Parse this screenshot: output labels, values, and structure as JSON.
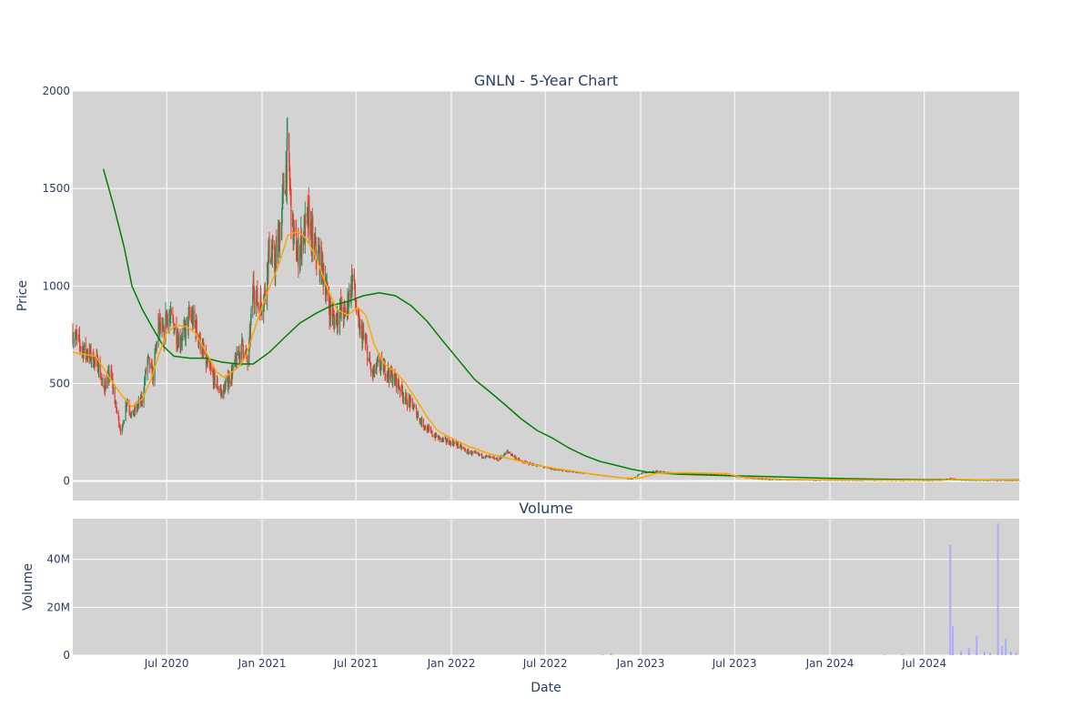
{
  "chart_data": [
    {
      "type": "candlestick",
      "title": "GNLN - 5-Year Chart",
      "ylabel": "Price",
      "ylim": [
        -100,
        2000
      ],
      "yticks": [
        0,
        500,
        1000,
        1500,
        2000
      ],
      "xlim": [
        "2020-01-02",
        "2024-12-31"
      ],
      "grid": true,
      "legend": "none",
      "colors": {
        "up": "#2e8b57",
        "down": "#ef3b2c",
        "short_ma": "#ffa500",
        "long_ma": "#008000",
        "background": "#d3d3d3"
      },
      "price_path": [
        [
          "2020-01-02",
          760
        ],
        [
          "2020-01-20",
          680
        ],
        [
          "2020-02-05",
          640
        ],
        [
          "2020-02-20",
          600
        ],
        [
          "2020-03-01",
          470
        ],
        [
          "2020-03-15",
          560
        ],
        [
          "2020-03-25",
          380
        ],
        [
          "2020-04-05",
          240
        ],
        [
          "2020-04-15",
          420
        ],
        [
          "2020-04-25",
          330
        ],
        [
          "2020-05-05",
          380
        ],
        [
          "2020-05-15",
          420
        ],
        [
          "2020-05-25",
          620
        ],
        [
          "2020-06-05",
          540
        ],
        [
          "2020-06-15",
          800
        ],
        [
          "2020-06-25",
          740
        ],
        [
          "2020-07-01",
          860
        ],
        [
          "2020-07-15",
          800
        ],
        [
          "2020-07-25",
          720
        ],
        [
          "2020-08-05",
          760
        ],
        [
          "2020-08-15",
          850
        ],
        [
          "2020-08-25",
          800
        ],
        [
          "2020-09-05",
          700
        ],
        [
          "2020-09-15",
          610
        ],
        [
          "2020-10-01",
          520
        ],
        [
          "2020-10-15",
          450
        ],
        [
          "2020-10-25",
          500
        ],
        [
          "2020-11-05",
          560
        ],
        [
          "2020-11-15",
          640
        ],
        [
          "2020-11-25",
          700
        ],
        [
          "2020-12-05",
          600
        ],
        [
          "2020-12-15",
          1000
        ],
        [
          "2020-12-25",
          900
        ],
        [
          "2021-01-05",
          940
        ],
        [
          "2021-01-15",
          1200
        ],
        [
          "2021-01-25",
          1100
        ],
        [
          "2021-02-05",
          1300
        ],
        [
          "2021-02-12",
          1500
        ],
        [
          "2021-02-20",
          1700
        ],
        [
          "2021-02-28",
          1300
        ],
        [
          "2021-03-10",
          1150
        ],
        [
          "2021-03-20",
          1250
        ],
        [
          "2021-04-01",
          1350
        ],
        [
          "2021-04-10",
          1200
        ],
        [
          "2021-04-20",
          1150
        ],
        [
          "2021-05-01",
          1050
        ],
        [
          "2021-05-10",
          900
        ],
        [
          "2021-05-20",
          820
        ],
        [
          "2021-06-01",
          880
        ],
        [
          "2021-06-10",
          850
        ],
        [
          "2021-06-25",
          1050
        ],
        [
          "2021-07-05",
          800
        ],
        [
          "2021-07-20",
          700
        ],
        [
          "2021-08-01",
          540
        ],
        [
          "2021-08-15",
          600
        ],
        [
          "2021-09-01",
          560
        ],
        [
          "2021-09-20",
          500
        ],
        [
          "2021-10-05",
          420
        ],
        [
          "2021-10-20",
          380
        ],
        [
          "2021-11-05",
          300
        ],
        [
          "2021-11-25",
          240
        ],
        [
          "2021-12-15",
          210
        ],
        [
          "2022-01-10",
          190
        ],
        [
          "2022-02-01",
          150
        ],
        [
          "2022-03-01",
          130
        ],
        [
          "2022-04-01",
          110
        ],
        [
          "2022-04-20",
          150
        ],
        [
          "2022-05-15",
          100
        ],
        [
          "2022-06-15",
          80
        ],
        [
          "2022-07-15",
          60
        ],
        [
          "2022-08-15",
          50
        ],
        [
          "2022-09-15",
          40
        ],
        [
          "2022-10-15",
          30
        ],
        [
          "2022-11-15",
          20
        ],
        [
          "2022-12-15",
          10
        ],
        [
          "2023-01-01",
          40
        ],
        [
          "2023-02-01",
          50
        ],
        [
          "2023-03-15",
          40
        ],
        [
          "2023-05-15",
          35
        ],
        [
          "2023-06-15",
          30
        ],
        [
          "2023-07-15",
          20
        ],
        [
          "2023-09-01",
          8
        ],
        [
          "2023-12-01",
          5
        ],
        [
          "2024-03-01",
          4
        ],
        [
          "2024-06-01",
          3
        ],
        [
          "2024-08-01",
          3
        ],
        [
          "2024-08-20",
          15
        ],
        [
          "2024-09-10",
          5
        ],
        [
          "2024-12-31",
          2
        ]
      ],
      "short_ma": [
        [
          "2020-01-02",
          660
        ],
        [
          "2020-02-15",
          640
        ],
        [
          "2020-03-15",
          520
        ],
        [
          "2020-04-05",
          440
        ],
        [
          "2020-04-25",
          380
        ],
        [
          "2020-05-15",
          420
        ],
        [
          "2020-06-01",
          520
        ],
        [
          "2020-06-15",
          640
        ],
        [
          "2020-07-01",
          760
        ],
        [
          "2020-07-20",
          800
        ],
        [
          "2020-08-10",
          790
        ],
        [
          "2020-08-25",
          760
        ],
        [
          "2020-09-15",
          660
        ],
        [
          "2020-10-05",
          560
        ],
        [
          "2020-10-20",
          530
        ],
        [
          "2020-11-15",
          580
        ],
        [
          "2020-12-01",
          640
        ],
        [
          "2020-12-20",
          800
        ],
        [
          "2021-01-10",
          960
        ],
        [
          "2021-02-01",
          1100
        ],
        [
          "2021-02-20",
          1260
        ],
        [
          "2021-03-10",
          1280
        ],
        [
          "2021-03-25",
          1250
        ],
        [
          "2021-04-15",
          1150
        ],
        [
          "2021-05-05",
          1000
        ],
        [
          "2021-05-25",
          880
        ],
        [
          "2021-06-15",
          850
        ],
        [
          "2021-07-05",
          890
        ],
        [
          "2021-07-20",
          850
        ],
        [
          "2021-08-05",
          700
        ],
        [
          "2021-08-25",
          600
        ],
        [
          "2021-09-15",
          560
        ],
        [
          "2021-10-05",
          500
        ],
        [
          "2021-10-25",
          420
        ],
        [
          "2021-11-15",
          330
        ],
        [
          "2021-12-05",
          260
        ],
        [
          "2022-01-01",
          220
        ],
        [
          "2022-02-01",
          180
        ],
        [
          "2022-03-15",
          140
        ],
        [
          "2022-05-01",
          110
        ],
        [
          "2022-06-15",
          80
        ],
        [
          "2022-08-01",
          60
        ],
        [
          "2022-10-01",
          35
        ],
        [
          "2022-12-01",
          15
        ],
        [
          "2023-01-01",
          15
        ],
        [
          "2023-02-01",
          40
        ],
        [
          "2023-04-01",
          42
        ],
        [
          "2023-06-15",
          38
        ],
        [
          "2023-07-15",
          20
        ],
        [
          "2023-10-01",
          8
        ],
        [
          "2024-03-01",
          5
        ],
        [
          "2024-08-01",
          3
        ],
        [
          "2024-09-01",
          8
        ],
        [
          "2024-12-31",
          3
        ]
      ],
      "long_ma": [
        [
          "2020-03-01",
          1600
        ],
        [
          "2020-03-20",
          1420
        ],
        [
          "2020-04-10",
          1200
        ],
        [
          "2020-04-25",
          1000
        ],
        [
          "2020-05-15",
          880
        ],
        [
          "2020-06-05",
          780
        ],
        [
          "2020-06-25",
          690
        ],
        [
          "2020-07-15",
          640
        ],
        [
          "2020-08-15",
          630
        ],
        [
          "2020-09-15",
          630
        ],
        [
          "2020-10-15",
          610
        ],
        [
          "2020-11-15",
          600
        ],
        [
          "2020-12-15",
          600
        ],
        [
          "2021-01-15",
          660
        ],
        [
          "2021-02-15",
          740
        ],
        [
          "2021-03-15",
          810
        ],
        [
          "2021-04-15",
          860
        ],
        [
          "2021-05-15",
          900
        ],
        [
          "2021-06-15",
          920
        ],
        [
          "2021-07-15",
          950
        ],
        [
          "2021-08-15",
          965
        ],
        [
          "2021-09-15",
          950
        ],
        [
          "2021-10-15",
          900
        ],
        [
          "2021-11-15",
          820
        ],
        [
          "2021-12-15",
          720
        ],
        [
          "2022-01-15",
          620
        ],
        [
          "2022-02-15",
          520
        ],
        [
          "2022-03-15",
          460
        ],
        [
          "2022-04-15",
          390
        ],
        [
          "2022-05-15",
          320
        ],
        [
          "2022-06-15",
          260
        ],
        [
          "2022-07-15",
          220
        ],
        [
          "2022-08-15",
          170
        ],
        [
          "2022-09-15",
          130
        ],
        [
          "2022-10-15",
          100
        ],
        [
          "2022-11-15",
          80
        ],
        [
          "2022-12-15",
          60
        ],
        [
          "2023-01-15",
          45
        ],
        [
          "2023-03-15",
          35
        ],
        [
          "2023-06-15",
          28
        ],
        [
          "2023-09-15",
          22
        ],
        [
          "2023-12-15",
          15
        ],
        [
          "2024-03-15",
          10
        ],
        [
          "2024-06-15",
          7
        ],
        [
          "2024-12-31",
          5
        ]
      ]
    },
    {
      "type": "bar",
      "title": "Volume",
      "xlabel": "Date",
      "ylabel": "Volume",
      "ylim": [
        0,
        57000000
      ],
      "yticks": [
        0,
        20000000,
        40000000
      ],
      "ytick_labels": [
        "0",
        "20M",
        "40M"
      ],
      "xticks": [
        "2020-07-01",
        "2021-01-01",
        "2021-07-01",
        "2022-01-01",
        "2022-07-01",
        "2023-01-01",
        "2023-07-01",
        "2024-01-01",
        "2024-07-01"
      ],
      "xtick_labels": [
        "Jul 2020",
        "Jan 2021",
        "Jul 2021",
        "Jan 2022",
        "Jul 2022",
        "Jan 2023",
        "Jul 2023",
        "Jan 2024",
        "Jul 2024"
      ],
      "color": "#aaaaff",
      "values": [
        [
          "2022-10-20",
          300000
        ],
        [
          "2022-11-05",
          800000
        ],
        [
          "2024-04-15",
          200000
        ],
        [
          "2024-05-20",
          300000
        ],
        [
          "2024-08-20",
          46000000
        ],
        [
          "2024-08-25",
          12000000
        ],
        [
          "2024-09-10",
          2000000
        ],
        [
          "2024-09-25",
          3000000
        ],
        [
          "2024-10-10",
          8000000
        ],
        [
          "2024-10-25",
          1500000
        ],
        [
          "2024-11-05",
          1000000
        ],
        [
          "2024-11-20",
          55000000
        ],
        [
          "2024-11-28",
          4000000
        ],
        [
          "2024-12-05",
          7000000
        ],
        [
          "2024-12-15",
          1500000
        ],
        [
          "2024-12-25",
          1000000
        ]
      ]
    }
  ]
}
